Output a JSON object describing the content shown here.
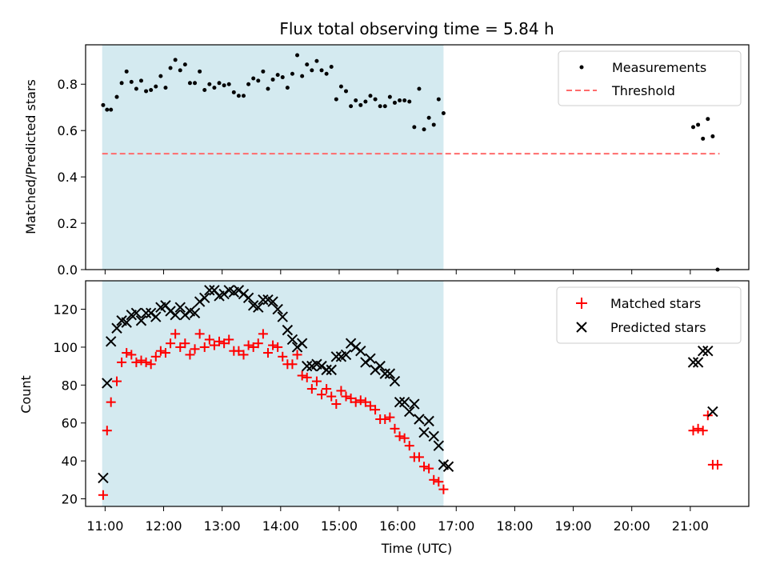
{
  "chart_data": [
    {
      "type": "scatter",
      "title": "Flux total observing time = 5.84 h",
      "xlabel": "",
      "ylabel": "Matched/Predicted stars",
      "xlim": [
        "10:40",
        "22:00"
      ],
      "ylim": [
        0,
        0.97
      ],
      "yticks": [
        "0.0",
        "0.2",
        "0.4",
        "0.6",
        "0.8"
      ],
      "shaded_region": {
        "x_start": "10:57",
        "x_end": "16:47",
        "color": "#d4eaf0"
      },
      "legend": {
        "position": "top-right",
        "entries": [
          "Measurements",
          "Threshold"
        ]
      },
      "series": [
        {
          "name": "Measurements",
          "style": "dot",
          "color": "#000000",
          "points": [
            [
              "10:58",
              0.71
            ],
            [
              "11:02",
              0.69
            ],
            [
              "11:06",
              0.69
            ],
            [
              "11:12",
              0.745
            ],
            [
              "11:17",
              0.805
            ],
            [
              "11:22",
              0.855
            ],
            [
              "11:27",
              0.81
            ],
            [
              "11:32",
              0.78
            ],
            [
              "11:37",
              0.815
            ],
            [
              "11:42",
              0.77
            ],
            [
              "11:47",
              0.775
            ],
            [
              "11:52",
              0.79
            ],
            [
              "11:57",
              0.835
            ],
            [
              "12:02",
              0.785
            ],
            [
              "12:07",
              0.87
            ],
            [
              "12:12",
              0.905
            ],
            [
              "12:17",
              0.86
            ],
            [
              "12:22",
              0.885
            ],
            [
              "12:27",
              0.805
            ],
            [
              "12:32",
              0.805
            ],
            [
              "12:37",
              0.855
            ],
            [
              "12:42",
              0.775
            ],
            [
              "12:47",
              0.8
            ],
            [
              "12:52",
              0.785
            ],
            [
              "12:57",
              0.805
            ],
            [
              "13:02",
              0.795
            ],
            [
              "13:07",
              0.8
            ],
            [
              "13:12",
              0.765
            ],
            [
              "13:17",
              0.75
            ],
            [
              "13:22",
              0.75
            ],
            [
              "13:27",
              0.8
            ],
            [
              "13:32",
              0.825
            ],
            [
              "13:37",
              0.815
            ],
            [
              "13:42",
              0.855
            ],
            [
              "13:47",
              0.78
            ],
            [
              "13:52",
              0.82
            ],
            [
              "13:57",
              0.84
            ],
            [
              "14:02",
              0.83
            ],
            [
              "14:07",
              0.785
            ],
            [
              "14:12",
              0.845
            ],
            [
              "14:17",
              0.925
            ],
            [
              "14:22",
              0.835
            ],
            [
              "14:27",
              0.885
            ],
            [
              "14:32",
              0.86
            ],
            [
              "14:37",
              0.9
            ],
            [
              "14:42",
              0.86
            ],
            [
              "14:47",
              0.845
            ],
            [
              "14:52",
              0.875
            ],
            [
              "14:57",
              0.735
            ],
            [
              "15:02",
              0.79
            ],
            [
              "15:07",
              0.77
            ],
            [
              "15:12",
              0.705
            ],
            [
              "15:17",
              0.73
            ],
            [
              "15:22",
              0.71
            ],
            [
              "15:27",
              0.725
            ],
            [
              "15:32",
              0.75
            ],
            [
              "15:37",
              0.735
            ],
            [
              "15:42",
              0.705
            ],
            [
              "15:47",
              0.705
            ],
            [
              "15:52",
              0.745
            ],
            [
              "15:57",
              0.72
            ],
            [
              "16:02",
              0.73
            ],
            [
              "16:07",
              0.73
            ],
            [
              "16:12",
              0.725
            ],
            [
              "16:17",
              0.615
            ],
            [
              "16:22",
              0.78
            ],
            [
              "16:27",
              0.605
            ],
            [
              "16:32",
              0.655
            ],
            [
              "16:37",
              0.625
            ],
            [
              "16:42",
              0.735
            ],
            [
              "16:47",
              0.675
            ],
            [
              "21:03",
              0.615
            ],
            [
              "21:08",
              0.625
            ],
            [
              "21:13",
              0.565
            ],
            [
              "21:18",
              0.65
            ],
            [
              "21:23",
              0.575
            ],
            [
              "21:28",
              0.0
            ]
          ]
        },
        {
          "name": "Threshold",
          "style": "dashed-line",
          "color": "#ff6b6b",
          "points": [
            [
              "10:57",
              0.5
            ],
            [
              "21:30",
              0.5
            ]
          ]
        }
      ]
    },
    {
      "type": "scatter",
      "title": "",
      "xlabel": "Time (UTC)",
      "ylabel": "Count",
      "xlim": [
        "10:40",
        "22:00"
      ],
      "ylim": [
        16,
        135
      ],
      "xticks": [
        "11:00",
        "12:00",
        "13:00",
        "14:00",
        "15:00",
        "16:00",
        "17:00",
        "18:00",
        "19:00",
        "20:00",
        "21:00"
      ],
      "yticks": [
        "20",
        "40",
        "60",
        "80",
        "100",
        "120"
      ],
      "shaded_region": {
        "x_start": "10:57",
        "x_end": "16:47",
        "color": "#d4eaf0"
      },
      "legend": {
        "position": "top-right",
        "entries": [
          "Matched stars",
          "Predicted stars"
        ]
      },
      "series": [
        {
          "name": "Matched stars",
          "marker": "+",
          "color": "#ff0000",
          "points": [
            [
              "10:58",
              22
            ],
            [
              "11:02",
              56
            ],
            [
              "11:06",
              71
            ],
            [
              "11:12",
              82
            ],
            [
              "11:17",
              92
            ],
            [
              "11:22",
              97
            ],
            [
              "11:27",
              96
            ],
            [
              "11:32",
              92
            ],
            [
              "11:37",
              93
            ],
            [
              "11:42",
              92
            ],
            [
              "11:47",
              91
            ],
            [
              "11:52",
              95
            ],
            [
              "11:57",
              98
            ],
            [
              "12:02",
              97
            ],
            [
              "12:07",
              102
            ],
            [
              "12:12",
              107
            ],
            [
              "12:17",
              100
            ],
            [
              "12:22",
              102
            ],
            [
              "12:27",
              96
            ],
            [
              "12:32",
              99
            ],
            [
              "12:37",
              107
            ],
            [
              "12:42",
              100
            ],
            [
              "12:47",
              104
            ],
            [
              "12:52",
              101
            ],
            [
              "12:57",
              103
            ],
            [
              "13:02",
              102
            ],
            [
              "13:07",
              104
            ],
            [
              "13:12",
              98
            ],
            [
              "13:17",
              98
            ],
            [
              "13:22",
              96
            ],
            [
              "13:27",
              101
            ],
            [
              "13:32",
              100
            ],
            [
              "13:37",
              102
            ],
            [
              "13:42",
              107
            ],
            [
              "13:47",
              97
            ],
            [
              "13:52",
              101
            ],
            [
              "13:57",
              100
            ],
            [
              "14:02",
              95
            ],
            [
              "14:07",
              91
            ],
            [
              "14:12",
              91
            ],
            [
              "14:17",
              96
            ],
            [
              "14:22",
              85
            ],
            [
              "14:27",
              84
            ],
            [
              "14:32",
              78
            ],
            [
              "14:37",
              82
            ],
            [
              "14:42",
              75
            ],
            [
              "14:47",
              78
            ],
            [
              "14:52",
              74
            ],
            [
              "14:57",
              70
            ],
            [
              "15:02",
              77
            ],
            [
              "15:07",
              74
            ],
            [
              "15:12",
              73
            ],
            [
              "15:17",
              71
            ],
            [
              "15:22",
              72
            ],
            [
              "15:27",
              71
            ],
            [
              "15:32",
              69
            ],
            [
              "15:37",
              67
            ],
            [
              "15:42",
              62
            ],
            [
              "15:47",
              62
            ],
            [
              "15:52",
              63
            ],
            [
              "15:57",
              57
            ],
            [
              "16:02",
              53
            ],
            [
              "16:07",
              52
            ],
            [
              "16:12",
              48
            ],
            [
              "16:17",
              42
            ],
            [
              "16:22",
              42
            ],
            [
              "16:27",
              37
            ],
            [
              "16:32",
              36
            ],
            [
              "16:37",
              30
            ],
            [
              "16:42",
              29
            ],
            [
              "16:47",
              25
            ],
            [
              "21:03",
              56
            ],
            [
              "21:08",
              57
            ],
            [
              "21:13",
              56
            ],
            [
              "21:18",
              64
            ],
            [
              "21:23",
              38
            ],
            [
              "21:28",
              38
            ]
          ]
        },
        {
          "name": "Predicted stars",
          "marker": "x",
          "color": "#000000",
          "points": [
            [
              "10:58",
              31
            ],
            [
              "11:02",
              81
            ],
            [
              "11:06",
              103
            ],
            [
              "11:12",
              110
            ],
            [
              "11:17",
              114
            ],
            [
              "11:22",
              113
            ],
            [
              "11:27",
              117
            ],
            [
              "11:32",
              118
            ],
            [
              "11:37",
              114
            ],
            [
              "11:42",
              118
            ],
            [
              "11:47",
              118
            ],
            [
              "11:52",
              116
            ],
            [
              "11:57",
              121
            ],
            [
              "12:02",
              122
            ],
            [
              "12:07",
              119
            ],
            [
              "12:12",
              117
            ],
            [
              "12:17",
              121
            ],
            [
              "12:22",
              117
            ],
            [
              "12:27",
              119
            ],
            [
              "12:32",
              118
            ],
            [
              "12:37",
              124
            ],
            [
              "12:42",
              126
            ],
            [
              "12:47",
              130
            ],
            [
              "12:52",
              130
            ],
            [
              "12:57",
              127
            ],
            [
              "13:02",
              128
            ],
            [
              "13:07",
              130
            ],
            [
              "13:12",
              129
            ],
            [
              "13:17",
              130
            ],
            [
              "13:22",
              128
            ],
            [
              "13:27",
              126
            ],
            [
              "13:32",
              122
            ],
            [
              "13:37",
              121
            ],
            [
              "13:42",
              125
            ],
            [
              "13:47",
              125
            ],
            [
              "13:52",
              124
            ],
            [
              "13:57",
              120
            ],
            [
              "14:02",
              116
            ],
            [
              "14:07",
              109
            ],
            [
              "14:12",
              104
            ],
            [
              "14:17",
              100
            ],
            [
              "14:22",
              102
            ],
            [
              "14:27",
              90
            ],
            [
              "14:32",
              90
            ],
            [
              "14:37",
              91
            ],
            [
              "14:42",
              90
            ],
            [
              "14:47",
              88
            ],
            [
              "14:52",
              88
            ],
            [
              "14:57",
              95
            ],
            [
              "15:02",
              95
            ],
            [
              "15:07",
              96
            ],
            [
              "15:12",
              102
            ],
            [
              "15:17",
              100
            ],
            [
              "15:22",
              98
            ],
            [
              "15:27",
              92
            ],
            [
              "15:32",
              94
            ],
            [
              "15:37",
              88
            ],
            [
              "15:42",
              90
            ],
            [
              "15:47",
              86
            ],
            [
              "15:52",
              86
            ],
            [
              "15:57",
              82
            ],
            [
              "16:02",
              71
            ],
            [
              "16:07",
              71
            ],
            [
              "16:12",
              66
            ],
            [
              "16:17",
              70
            ],
            [
              "16:22",
              62
            ],
            [
              "16:27",
              55
            ],
            [
              "16:32",
              61
            ],
            [
              "16:37",
              53
            ],
            [
              "16:42",
              48
            ],
            [
              "16:47",
              38
            ],
            [
              "16:52",
              37
            ],
            [
              "21:03",
              92
            ],
            [
              "21:08",
              92
            ],
            [
              "21:13",
              98
            ],
            [
              "21:18",
              98
            ],
            [
              "21:23",
              66
            ]
          ]
        }
      ]
    }
  ]
}
